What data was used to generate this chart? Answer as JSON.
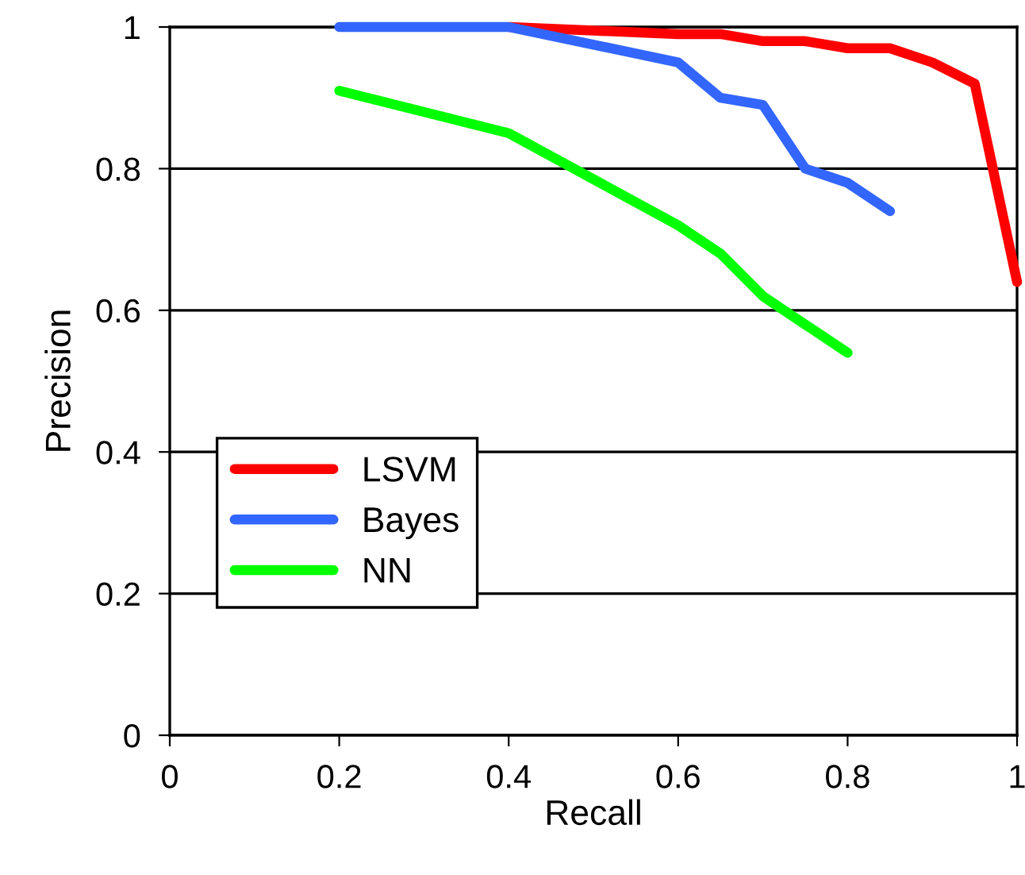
{
  "chart_data": {
    "type": "line",
    "xlabel": "Recall",
    "ylabel": "Precision",
    "xlim": [
      0,
      1
    ],
    "ylim": [
      0,
      1
    ],
    "xticks": [
      0,
      0.2,
      0.4,
      0.6,
      0.8,
      1
    ],
    "yticks": [
      0,
      0.2,
      0.4,
      0.6,
      0.8,
      1
    ],
    "grid": "y",
    "legend": "left",
    "marker": "none",
    "line_style": "solid",
    "series": [
      {
        "name": "LSVM",
        "color": "#ff0000",
        "x": [
          0.4,
          0.5,
          0.6,
          0.65,
          0.7,
          0.75,
          0.8,
          0.85,
          0.9,
          0.95,
          1.0
        ],
        "values": [
          1.0,
          0.995,
          0.99,
          0.99,
          0.98,
          0.98,
          0.97,
          0.97,
          0.95,
          0.92,
          0.64
        ]
      },
      {
        "name": "Bayes",
        "color": "#3366ff",
        "x": [
          0.2,
          0.4,
          0.6,
          0.65,
          0.7,
          0.75,
          0.8,
          0.85
        ],
        "values": [
          1.0,
          1.0,
          0.95,
          0.9,
          0.89,
          0.8,
          0.78,
          0.74
        ]
      },
      {
        "name": "NN",
        "color": "#00ff00",
        "x": [
          0.2,
          0.4,
          0.6,
          0.65,
          0.7,
          0.8
        ],
        "values": [
          0.91,
          0.85,
          0.72,
          0.68,
          0.62,
          0.54
        ]
      }
    ]
  }
}
